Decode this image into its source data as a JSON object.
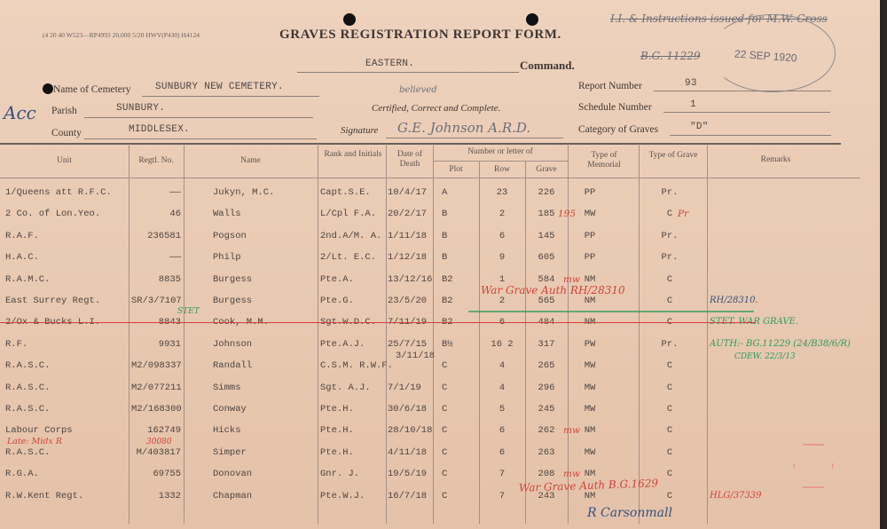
{
  "form": {
    "print_code": "(4 20 40 W523—RP4993 20,000 5/20 HWV(P430) H4124",
    "title": "GRAVES REGISTRATION REPORT FORM.",
    "command_value": "EASTERN.",
    "command_label": "Command.",
    "cemetery_label": "Name of Cemetery",
    "cemetery_value": "SUNBURY NEW CEMETERY.",
    "parish_label": "Parish",
    "parish_value": "SUNBURY.",
    "county_label": "County",
    "county_value": "MIDDLESEX.",
    "certified_label": "Certified, Correct and Complete.",
    "certified_hand": "believed",
    "signature_label": "Signature",
    "signature_value": "G.E. Johnson A.R.D.",
    "report_number_label": "Report Number",
    "report_number": "93",
    "schedule_number_label": "Schedule Number",
    "schedule_number": "1",
    "category_label": "Category of Graves",
    "category_value": "\"D\"",
    "stamp_note": "I.I. & Instructions issued for M.W. Cross",
    "stamp_note_ref": "B.G. 11229",
    "date_stamp": "22 SEP 1920",
    "margin_note": "Acc"
  },
  "table": {
    "headers": {
      "unit": "Unit",
      "regtl_no": "Regtl. No.",
      "name": "Name",
      "rank": "Rank and Initials",
      "date": "Date of Death",
      "number_group": "Number or letter of",
      "plot": "Plot",
      "row": "Row",
      "grave": "Grave",
      "memorial": "Type of Memorial",
      "grave_type": "Type of Grave",
      "remarks": "Remarks"
    },
    "rows": [
      {
        "unit": "1/Queens att R.F.C.",
        "regtl": "——",
        "name": "Jukyn, M.C.",
        "rank": "Capt.S.E.",
        "date": "10/4/17",
        "plot": "A",
        "row": "23",
        "grave": "226",
        "memorial": "PP",
        "gtype": "Pr.",
        "remarks": ""
      },
      {
        "unit": "2 Co. of Lon.Yeo.",
        "regtl": "46",
        "name": "Walls",
        "rank": "L/Cpl F.A.",
        "date": "20/2/17",
        "plot": "B",
        "row": "2",
        "grave": "185",
        "grave_note": "195",
        "memorial": "MW",
        "gtype": "C",
        "gtype_note": "Pr",
        "remarks": ""
      },
      {
        "unit": "R.A.F.",
        "regtl": "236581",
        "name": "Pogson",
        "rank": "2nd.A/M. A.",
        "date": "1/11/18",
        "plot": "B",
        "row": "6",
        "grave": "145",
        "memorial": "PP",
        "gtype": "Pr.",
        "remarks": ""
      },
      {
        "unit": "H.A.C.",
        "regtl": "——",
        "name": "Philp",
        "rank": "2/Lt. E.C.",
        "date": "1/12/18",
        "plot": "B",
        "row": "9",
        "grave": "605",
        "memorial": "PP",
        "gtype": "Pr.",
        "remarks": ""
      },
      {
        "unit": "R.A.M.C.",
        "regtl": "8835",
        "name": "Burgess",
        "rank": "Pte.A.",
        "date": "13/12/16",
        "plot": "B2",
        "row": "1",
        "grave": "584",
        "memorial": "NM",
        "memorial_note": "mw",
        "gtype": "C",
        "remarks": ""
      },
      {
        "unit": "East Surrey Regt.",
        "regtl": "SR/3/7107",
        "name": "Burgess",
        "rank": "Pte.G.",
        "date": "23/5/20",
        "plot": "B2",
        "row": "2",
        "grave": "565",
        "memorial": "NM",
        "gtype": "C",
        "remarks": "RH/28310."
      },
      {
        "unit": "2/Ox & Bucks L.I.",
        "regtl": "8843",
        "name": "Cook, M.M.",
        "rank": "Sgt.W.D.C.",
        "date": "7/11/19",
        "plot": "B2",
        "row": "6",
        "grave": "484",
        "memorial": "NM",
        "gtype": "C",
        "remarks": "STET. WAR GRAVE."
      },
      {
        "unit": "R.F.",
        "regtl": "9931",
        "name": "Johnson",
        "rank": "Pte.A.J.",
        "date": "25/7/15",
        "plot": "B½",
        "row": "16 2",
        "grave": "317",
        "memorial": "PW",
        "gtype": "Pr.",
        "remarks": "AUTH:- BG.11229 (24/B38/6/R)"
      },
      {
        "unit": "R.A.S.C.",
        "regtl": "M2/098337",
        "name": "Randall",
        "rank": "C.S.M. R.W.F.",
        "date": "3/11/18",
        "plot": "C",
        "row": "4",
        "grave": "265",
        "memorial": "MW",
        "gtype": "C",
        "remarks": ""
      },
      {
        "unit": "R.A.S.C.",
        "regtl": "M2/077211",
        "name": "Simms",
        "rank": "Sgt. A.J.",
        "date": "7/1/19",
        "plot": "C",
        "row": "4",
        "grave": "296",
        "memorial": "MW",
        "gtype": "C",
        "remarks": ""
      },
      {
        "unit": "R.A.S.C.",
        "regtl": "M2/168300",
        "name": "Conway",
        "rank": "Pte.H.",
        "date": "30/6/18",
        "plot": "C",
        "row": "5",
        "grave": "245",
        "memorial": "MW",
        "gtype": "C",
        "remarks": ""
      },
      {
        "unit": "Labour Corps",
        "regtl": "162749",
        "name": "Hicks",
        "rank": "Pte.H.",
        "date": "28/10/18",
        "plot": "C",
        "row": "6",
        "grave": "262",
        "memorial": "NM",
        "memorial_note": "mw",
        "gtype": "C",
        "remarks": ""
      },
      {
        "unit": "R.A.S.C.",
        "regtl": "M/403817",
        "name": "Simper",
        "rank": "Pte.H.",
        "date": "4/11/18",
        "plot": "C",
        "row": "6",
        "grave": "263",
        "memorial": "MW",
        "gtype": "C",
        "remarks": ""
      },
      {
        "unit": "R.G.A.",
        "regtl": "69755",
        "name": "Donovan",
        "rank": "Gnr. J.",
        "date": "19/5/19",
        "plot": "C",
        "row": "7",
        "grave": "208",
        "memorial": "NM",
        "memorial_note": "mw",
        "gtype": "C",
        "remarks": ""
      },
      {
        "unit": "R.W.Kent Regt.",
        "regtl": "1332",
        "name": "Chapman",
        "rank": "Pte.W.J.",
        "date": "16/7/18",
        "plot": "C",
        "row": "7",
        "grave": "243",
        "memorial": "NM",
        "gtype": "C",
        "remarks": "HLG/37339"
      }
    ],
    "annotations": {
      "war_grave_1": "War Grave Auth RH/28310",
      "war_grave_2": "War Grave Auth B.G.1629",
      "cdew": "CDEW. 22/3/13",
      "late_unit": "Late: Midx R",
      "late_no": "30080",
      "stet": "STET",
      "signoff": "R Carsonmall"
    }
  },
  "colors": {
    "paper": "#eed2bd",
    "typed": "#4d4542",
    "red_ink": "#d2413a",
    "green_ink": "#2f9a5e",
    "blue_ink": "#35507e"
  }
}
